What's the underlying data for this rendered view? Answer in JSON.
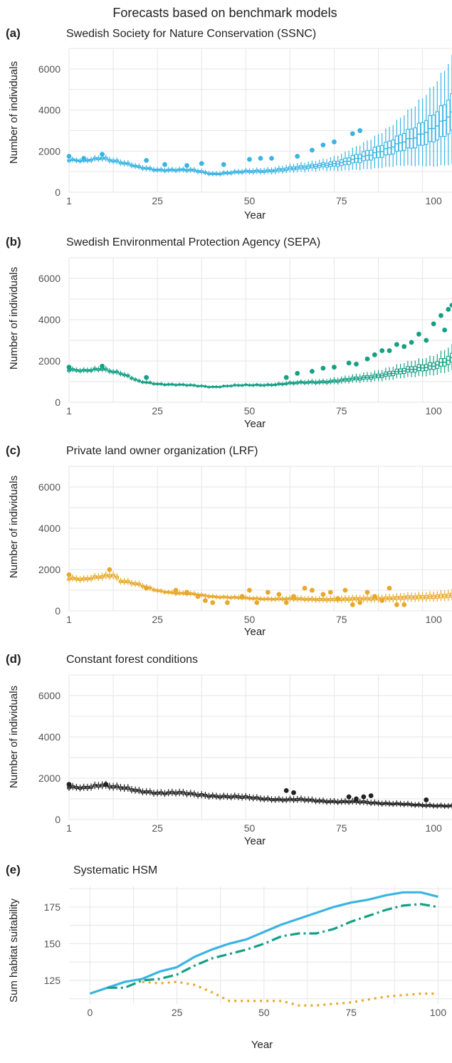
{
  "figure": {
    "title": "Forecasts based on benchmark models",
    "panels": [
      {
        "letter": "(a)",
        "subtitle": "Swedish Society for Nature Conservation (SSNC)",
        "xlabel": "Year",
        "ylabel": "Number of individuals"
      },
      {
        "letter": "(b)",
        "subtitle": "Swedish Environmental Protection Agency (SEPA)",
        "xlabel": "Year",
        "ylabel": "Number of individuals"
      },
      {
        "letter": "(c)",
        "subtitle": "Private land owner organization (LRF)",
        "xlabel": "Year",
        "ylabel": "Number of individuals"
      },
      {
        "letter": "(d)",
        "subtitle": "Constant forest conditions",
        "xlabel": "Year",
        "ylabel": "Number of individuals"
      },
      {
        "letter": "(e)",
        "subtitle": "Systematic HSM",
        "xlabel": "Year",
        "ylabel": "Sum habitat suitability"
      }
    ]
  },
  "colors": {
    "ssnc": "#3ab4e3",
    "sepa": "#15a085",
    "lrf": "#e8a82b",
    "constant": "#222222",
    "grid": "#e6e6e6",
    "tick": "#555555"
  },
  "chart_data": [
    {
      "type": "boxplot",
      "panel": "(a)",
      "title": "Swedish Society for Nature Conservation (SSNC)",
      "xlabel": "Year",
      "ylabel": "Number of individuals",
      "xlim": [
        1,
        105
      ],
      "ylim": [
        0,
        7000
      ],
      "xticks": [
        1,
        25,
        50,
        75,
        100
      ],
      "yticks": [
        0,
        2000,
        4000,
        6000
      ],
      "median_keypoints": [
        [
          1,
          1550
        ],
        [
          5,
          1500
        ],
        [
          10,
          1700
        ],
        [
          15,
          1450
        ],
        [
          20,
          1200
        ],
        [
          25,
          1100
        ],
        [
          30,
          1080
        ],
        [
          35,
          1050
        ],
        [
          40,
          900
        ],
        [
          45,
          950
        ],
        [
          50,
          1000
        ],
        [
          55,
          1050
        ],
        [
          60,
          1120
        ],
        [
          65,
          1200
        ],
        [
          70,
          1350
        ],
        [
          75,
          1420
        ],
        [
          80,
          1650
        ],
        [
          85,
          2000
        ],
        [
          90,
          2300
        ],
        [
          95,
          2650
        ],
        [
          100,
          3200
        ],
        [
          105,
          3800
        ]
      ],
      "spread_fraction": [
        [
          1,
          0.08
        ],
        [
          25,
          0.12
        ],
        [
          50,
          0.14
        ],
        [
          70,
          0.2
        ],
        [
          80,
          0.35
        ],
        [
          90,
          0.45
        ],
        [
          100,
          0.6
        ],
        [
          105,
          0.65
        ]
      ],
      "observed_points": [
        [
          1,
          1750
        ],
        [
          5,
          1650
        ],
        [
          10,
          1850
        ],
        [
          22,
          1550
        ],
        [
          27,
          1350
        ],
        [
          33,
          1300
        ],
        [
          37,
          1400
        ],
        [
          43,
          1350
        ],
        [
          50,
          1600
        ],
        [
          53,
          1650
        ],
        [
          56,
          1650
        ],
        [
          63,
          1750
        ],
        [
          67,
          2050
        ],
        [
          70,
          2300
        ],
        [
          73,
          2450
        ],
        [
          78,
          2850
        ],
        [
          80,
          3000
        ]
      ]
    },
    {
      "type": "boxplot",
      "panel": "(b)",
      "title": "Swedish Environmental Protection Agency (SEPA)",
      "xlabel": "Year",
      "ylabel": "Number of individuals",
      "xlim": [
        1,
        105
      ],
      "ylim": [
        0,
        7000
      ],
      "xticks": [
        1,
        25,
        50,
        75,
        100
      ],
      "yticks": [
        0,
        2000,
        4000,
        6000
      ],
      "median_keypoints": [
        [
          1,
          1550
        ],
        [
          5,
          1500
        ],
        [
          10,
          1650
        ],
        [
          15,
          1400
        ],
        [
          20,
          1000
        ],
        [
          25,
          900
        ],
        [
          30,
          850
        ],
        [
          35,
          800
        ],
        [
          40,
          750
        ],
        [
          45,
          800
        ],
        [
          50,
          820
        ],
        [
          55,
          850
        ],
        [
          60,
          900
        ],
        [
          65,
          950
        ],
        [
          70,
          1000
        ],
        [
          75,
          1050
        ],
        [
          80,
          1150
        ],
        [
          85,
          1300
        ],
        [
          90,
          1450
        ],
        [
          95,
          1600
        ],
        [
          100,
          1800
        ],
        [
          105,
          2100
        ]
      ],
      "spread_fraction": [
        [
          1,
          0.08
        ],
        [
          25,
          0.1
        ],
        [
          50,
          0.1
        ],
        [
          70,
          0.14
        ],
        [
          85,
          0.2
        ],
        [
          105,
          0.28
        ]
      ],
      "observed_points": [
        [
          1,
          1700
        ],
        [
          10,
          1750
        ],
        [
          22,
          1200
        ],
        [
          60,
          1200
        ],
        [
          63,
          1400
        ],
        [
          67,
          1500
        ],
        [
          70,
          1650
        ],
        [
          73,
          1700
        ],
        [
          77,
          1900
        ],
        [
          79,
          1850
        ],
        [
          82,
          2100
        ],
        [
          84,
          2300
        ],
        [
          86,
          2500
        ],
        [
          88,
          2500
        ],
        [
          90,
          2800
        ],
        [
          92,
          2700
        ],
        [
          94,
          2900
        ],
        [
          96,
          3300
        ],
        [
          98,
          3000
        ],
        [
          100,
          3800
        ],
        [
          102,
          4200
        ],
        [
          103,
          3500
        ],
        [
          104,
          4500
        ],
        [
          105,
          4700
        ]
      ]
    },
    {
      "type": "boxplot",
      "panel": "(c)",
      "title": "Private land owner organization (LRF)",
      "xlabel": "Year",
      "ylabel": "Number of individuals",
      "xlim": [
        1,
        105
      ],
      "ylim": [
        0,
        7000
      ],
      "xticks": [
        1,
        25,
        50,
        75,
        100
      ],
      "yticks": [
        0,
        2000,
        4000,
        6000
      ],
      "median_keypoints": [
        [
          1,
          1550
        ],
        [
          5,
          1500
        ],
        [
          10,
          1700
        ],
        [
          13,
          1750
        ],
        [
          15,
          1450
        ],
        [
          20,
          1250
        ],
        [
          25,
          1000
        ],
        [
          30,
          850
        ],
        [
          35,
          800
        ],
        [
          40,
          700
        ],
        [
          45,
          650
        ],
        [
          50,
          600
        ],
        [
          55,
          580
        ],
        [
          60,
          580
        ],
        [
          65,
          560
        ],
        [
          70,
          560
        ],
        [
          75,
          550
        ],
        [
          80,
          580
        ],
        [
          85,
          600
        ],
        [
          90,
          620
        ],
        [
          95,
          650
        ],
        [
          100,
          700
        ],
        [
          105,
          750
        ]
      ],
      "spread_fraction": [
        [
          1,
          0.1
        ],
        [
          25,
          0.12
        ],
        [
          50,
          0.2
        ],
        [
          75,
          0.3
        ],
        [
          105,
          0.35
        ]
      ],
      "observed_points": [
        [
          1,
          1750
        ],
        [
          12,
          2000
        ],
        [
          22,
          1100
        ],
        [
          30,
          1000
        ],
        [
          33,
          900
        ],
        [
          36,
          700
        ],
        [
          38,
          500
        ],
        [
          40,
          400
        ],
        [
          44,
          400
        ],
        [
          48,
          700
        ],
        [
          50,
          1000
        ],
        [
          52,
          400
        ],
        [
          55,
          900
        ],
        [
          58,
          800
        ],
        [
          60,
          400
        ],
        [
          62,
          700
        ],
        [
          65,
          1100
        ],
        [
          67,
          1000
        ],
        [
          70,
          800
        ],
        [
          72,
          900
        ],
        [
          74,
          600
        ],
        [
          76,
          1000
        ],
        [
          78,
          300
        ],
        [
          80,
          400
        ],
        [
          82,
          900
        ],
        [
          84,
          700
        ],
        [
          86,
          500
        ],
        [
          88,
          1100
        ],
        [
          90,
          300
        ],
        [
          92,
          300
        ]
      ]
    },
    {
      "type": "boxplot",
      "panel": "(d)",
      "title": "Constant forest conditions",
      "xlabel": "Year",
      "ylabel": "Number of individuals",
      "xlim": [
        1,
        105
      ],
      "ylim": [
        0,
        7000
      ],
      "xticks": [
        1,
        25,
        50,
        75,
        100
      ],
      "yticks": [
        0,
        2000,
        4000,
        6000
      ],
      "median_keypoints": [
        [
          1,
          1550
        ],
        [
          5,
          1500
        ],
        [
          10,
          1700
        ],
        [
          15,
          1550
        ],
        [
          20,
          1350
        ],
        [
          25,
          1300
        ],
        [
          30,
          1300
        ],
        [
          35,
          1200
        ],
        [
          40,
          1150
        ],
        [
          45,
          1100
        ],
        [
          50,
          1050
        ],
        [
          55,
          1000
        ],
        [
          60,
          950
        ],
        [
          65,
          950
        ],
        [
          70,
          900
        ],
        [
          75,
          850
        ],
        [
          80,
          850
        ],
        [
          85,
          800
        ],
        [
          90,
          750
        ],
        [
          95,
          700
        ],
        [
          100,
          680
        ],
        [
          105,
          650
        ]
      ],
      "spread_fraction": [
        [
          1,
          0.1
        ],
        [
          50,
          0.15
        ],
        [
          105,
          0.2
        ]
      ],
      "observed_points": [
        [
          1,
          1700
        ],
        [
          11,
          1700
        ],
        [
          60,
          1400
        ],
        [
          62,
          1300
        ],
        [
          77,
          1100
        ],
        [
          79,
          1000
        ],
        [
          81,
          1100
        ],
        [
          83,
          1150
        ],
        [
          98,
          950
        ]
      ]
    },
    {
      "type": "line",
      "panel": "(e)",
      "title": "Systematic HSM",
      "xlabel": "Year",
      "ylabel": "Sum habitat suitability",
      "xlim": [
        -6,
        104
      ],
      "ylim": [
        109,
        189
      ],
      "xticks": [
        0,
        25,
        50,
        75,
        100
      ],
      "yticks": [
        125,
        150,
        175
      ],
      "series": [
        {
          "color": "#3ab4e3",
          "dash": "solid",
          "x": [
            0,
            5,
            10,
            15,
            20,
            25,
            30,
            35,
            40,
            45,
            50,
            55,
            60,
            65,
            70,
            75,
            80,
            85,
            90,
            95,
            100
          ],
          "y": [
            116,
            120,
            124,
            126,
            131,
            134,
            141,
            146,
            150,
            153,
            158,
            163,
            167,
            171,
            175,
            178,
            180,
            183,
            185,
            185,
            182
          ]
        },
        {
          "color": "#15a085",
          "dash": "dashdot",
          "x": [
            5,
            10,
            15,
            20,
            25,
            30,
            35,
            40,
            45,
            50,
            55,
            60,
            65,
            70,
            75,
            80,
            85,
            90,
            95,
            100
          ],
          "y": [
            120,
            120,
            125,
            126,
            129,
            135,
            140,
            143,
            146,
            150,
            155,
            157,
            157,
            160,
            165,
            169,
            173,
            176,
            177,
            175
          ]
        },
        {
          "color": "#e8a82b",
          "dash": "dotted",
          "x": [
            15,
            20,
            25,
            30,
            35,
            40,
            45,
            50,
            55,
            60,
            65,
            70,
            75,
            80,
            85,
            90,
            95,
            100
          ],
          "y": [
            124,
            123,
            124,
            122,
            117,
            111,
            111,
            111,
            111,
            108,
            108,
            109,
            110,
            112,
            114,
            115,
            116,
            116
          ]
        }
      ]
    }
  ]
}
